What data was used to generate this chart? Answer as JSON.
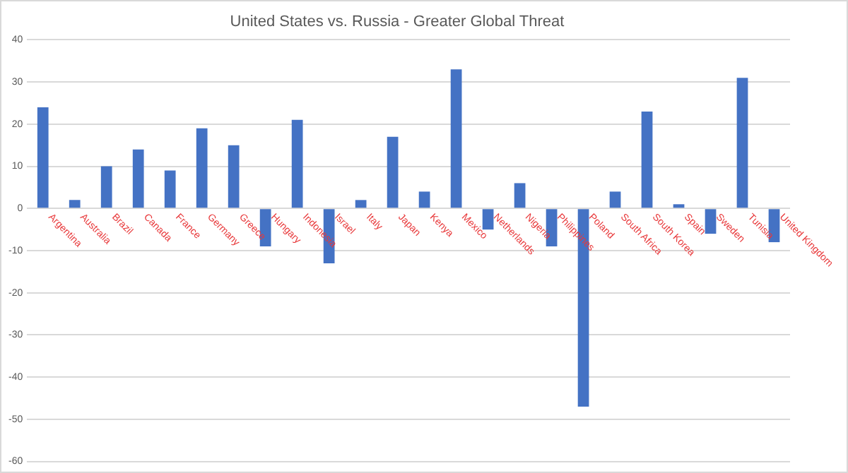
{
  "chart_data": {
    "type": "bar",
    "title": "United States vs. Russia - Greater Global Threat",
    "categories": [
      "Argentina",
      "Australia",
      "Brazil",
      "Canada",
      "France",
      "Germany",
      "Greece",
      "Hungary",
      "Indonesia",
      "Israel",
      "Italy",
      "Japan",
      "Kenya",
      "Mexico",
      "Netherlands",
      "Nigeria",
      "Philippines",
      "Poland",
      "South Africa",
      "South Korea",
      "Spain",
      "Sweden",
      "Tunisia",
      "United Kingdom"
    ],
    "values": [
      24,
      2,
      10,
      14,
      9,
      19,
      15,
      -9,
      21,
      -13,
      2,
      17,
      4,
      33,
      -5,
      6,
      -9,
      -47,
      4,
      23,
      1,
      -6,
      31,
      -8
    ],
    "color": "#4472c4",
    "ylim": [
      -60,
      40
    ],
    "yticks": [
      -60,
      -50,
      -40,
      -30,
      -20,
      -10,
      0,
      10,
      20,
      30,
      40
    ],
    "grid": "y",
    "legend": false
  }
}
